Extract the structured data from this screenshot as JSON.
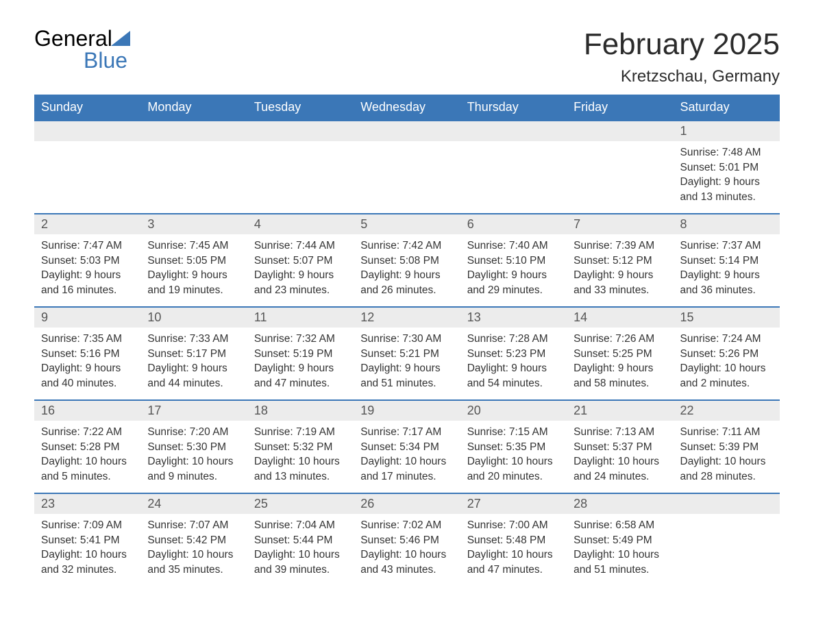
{
  "logo": {
    "word1": "General",
    "word2": "Blue"
  },
  "title": "February 2025",
  "location": "Kretzschau, Germany",
  "colors": {
    "header_bg": "#3b77b7",
    "header_text": "#ffffff",
    "daynum_bg": "#ececec",
    "daynum_border": "#3b77b7",
    "body_text": "#333333",
    "logo_blue": "#3b77b7"
  },
  "day_headers": [
    "Sunday",
    "Monday",
    "Tuesday",
    "Wednesday",
    "Thursday",
    "Friday",
    "Saturday"
  ],
  "weeks": [
    [
      {
        "blank": true
      },
      {
        "blank": true
      },
      {
        "blank": true
      },
      {
        "blank": true
      },
      {
        "blank": true
      },
      {
        "blank": true
      },
      {
        "num": "1",
        "sunrise": "Sunrise: 7:48 AM",
        "sunset": "Sunset: 5:01 PM",
        "day1": "Daylight: 9 hours",
        "day2": "and 13 minutes."
      }
    ],
    [
      {
        "num": "2",
        "sunrise": "Sunrise: 7:47 AM",
        "sunset": "Sunset: 5:03 PM",
        "day1": "Daylight: 9 hours",
        "day2": "and 16 minutes."
      },
      {
        "num": "3",
        "sunrise": "Sunrise: 7:45 AM",
        "sunset": "Sunset: 5:05 PM",
        "day1": "Daylight: 9 hours",
        "day2": "and 19 minutes."
      },
      {
        "num": "4",
        "sunrise": "Sunrise: 7:44 AM",
        "sunset": "Sunset: 5:07 PM",
        "day1": "Daylight: 9 hours",
        "day2": "and 23 minutes."
      },
      {
        "num": "5",
        "sunrise": "Sunrise: 7:42 AM",
        "sunset": "Sunset: 5:08 PM",
        "day1": "Daylight: 9 hours",
        "day2": "and 26 minutes."
      },
      {
        "num": "6",
        "sunrise": "Sunrise: 7:40 AM",
        "sunset": "Sunset: 5:10 PM",
        "day1": "Daylight: 9 hours",
        "day2": "and 29 minutes."
      },
      {
        "num": "7",
        "sunrise": "Sunrise: 7:39 AM",
        "sunset": "Sunset: 5:12 PM",
        "day1": "Daylight: 9 hours",
        "day2": "and 33 minutes."
      },
      {
        "num": "8",
        "sunrise": "Sunrise: 7:37 AM",
        "sunset": "Sunset: 5:14 PM",
        "day1": "Daylight: 9 hours",
        "day2": "and 36 minutes."
      }
    ],
    [
      {
        "num": "9",
        "sunrise": "Sunrise: 7:35 AM",
        "sunset": "Sunset: 5:16 PM",
        "day1": "Daylight: 9 hours",
        "day2": "and 40 minutes."
      },
      {
        "num": "10",
        "sunrise": "Sunrise: 7:33 AM",
        "sunset": "Sunset: 5:17 PM",
        "day1": "Daylight: 9 hours",
        "day2": "and 44 minutes."
      },
      {
        "num": "11",
        "sunrise": "Sunrise: 7:32 AM",
        "sunset": "Sunset: 5:19 PM",
        "day1": "Daylight: 9 hours",
        "day2": "and 47 minutes."
      },
      {
        "num": "12",
        "sunrise": "Sunrise: 7:30 AM",
        "sunset": "Sunset: 5:21 PM",
        "day1": "Daylight: 9 hours",
        "day2": "and 51 minutes."
      },
      {
        "num": "13",
        "sunrise": "Sunrise: 7:28 AM",
        "sunset": "Sunset: 5:23 PM",
        "day1": "Daylight: 9 hours",
        "day2": "and 54 minutes."
      },
      {
        "num": "14",
        "sunrise": "Sunrise: 7:26 AM",
        "sunset": "Sunset: 5:25 PM",
        "day1": "Daylight: 9 hours",
        "day2": "and 58 minutes."
      },
      {
        "num": "15",
        "sunrise": "Sunrise: 7:24 AM",
        "sunset": "Sunset: 5:26 PM",
        "day1": "Daylight: 10 hours",
        "day2": "and 2 minutes."
      }
    ],
    [
      {
        "num": "16",
        "sunrise": "Sunrise: 7:22 AM",
        "sunset": "Sunset: 5:28 PM",
        "day1": "Daylight: 10 hours",
        "day2": "and 5 minutes."
      },
      {
        "num": "17",
        "sunrise": "Sunrise: 7:20 AM",
        "sunset": "Sunset: 5:30 PM",
        "day1": "Daylight: 10 hours",
        "day2": "and 9 minutes."
      },
      {
        "num": "18",
        "sunrise": "Sunrise: 7:19 AM",
        "sunset": "Sunset: 5:32 PM",
        "day1": "Daylight: 10 hours",
        "day2": "and 13 minutes."
      },
      {
        "num": "19",
        "sunrise": "Sunrise: 7:17 AM",
        "sunset": "Sunset: 5:34 PM",
        "day1": "Daylight: 10 hours",
        "day2": "and 17 minutes."
      },
      {
        "num": "20",
        "sunrise": "Sunrise: 7:15 AM",
        "sunset": "Sunset: 5:35 PM",
        "day1": "Daylight: 10 hours",
        "day2": "and 20 minutes."
      },
      {
        "num": "21",
        "sunrise": "Sunrise: 7:13 AM",
        "sunset": "Sunset: 5:37 PM",
        "day1": "Daylight: 10 hours",
        "day2": "and 24 minutes."
      },
      {
        "num": "22",
        "sunrise": "Sunrise: 7:11 AM",
        "sunset": "Sunset: 5:39 PM",
        "day1": "Daylight: 10 hours",
        "day2": "and 28 minutes."
      }
    ],
    [
      {
        "num": "23",
        "sunrise": "Sunrise: 7:09 AM",
        "sunset": "Sunset: 5:41 PM",
        "day1": "Daylight: 10 hours",
        "day2": "and 32 minutes."
      },
      {
        "num": "24",
        "sunrise": "Sunrise: 7:07 AM",
        "sunset": "Sunset: 5:42 PM",
        "day1": "Daylight: 10 hours",
        "day2": "and 35 minutes."
      },
      {
        "num": "25",
        "sunrise": "Sunrise: 7:04 AM",
        "sunset": "Sunset: 5:44 PM",
        "day1": "Daylight: 10 hours",
        "day2": "and 39 minutes."
      },
      {
        "num": "26",
        "sunrise": "Sunrise: 7:02 AM",
        "sunset": "Sunset: 5:46 PM",
        "day1": "Daylight: 10 hours",
        "day2": "and 43 minutes."
      },
      {
        "num": "27",
        "sunrise": "Sunrise: 7:00 AM",
        "sunset": "Sunset: 5:48 PM",
        "day1": "Daylight: 10 hours",
        "day2": "and 47 minutes."
      },
      {
        "num": "28",
        "sunrise": "Sunrise: 6:58 AM",
        "sunset": "Sunset: 5:49 PM",
        "day1": "Daylight: 10 hours",
        "day2": "and 51 minutes."
      },
      {
        "blank": true
      }
    ]
  ]
}
